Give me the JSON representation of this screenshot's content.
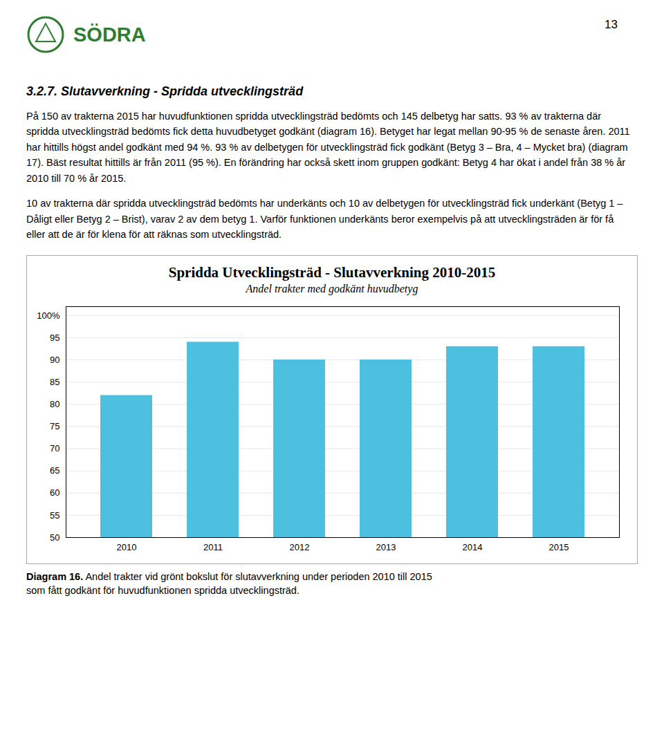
{
  "page_number": "13",
  "logo": {
    "text": "SÖDRA",
    "color": "#2e7d32"
  },
  "heading": "3.2.7.  Slutavverkning - Spridda utvecklingsträd",
  "paragraphs": [
    "På 150 av trakterna 2015 har huvudfunktionen spridda utvecklingsträd bedömts och 145 delbetyg har satts. 93 % av trakterna där spridda utvecklingsträd bedömts fick detta huvudbetyget godkänt (diagram 16). Betyget har legat mellan 90-95 % de senaste åren. 2011 har hittills högst andel godkänt med 94 %. 93 % av delbetygen för utvecklingsträd fick godkänt (Betyg 3 – Bra, 4 – Mycket bra) (diagram 17). Bäst resultat hittills är från 2011 (95 %). En förändring har också skett inom gruppen godkänt: Betyg 4 har ökat i andel från 38 % år 2010 till 70 % år 2015.",
    "10 av trakterna där spridda utvecklingsträd bedömts har underkänts och 10 av delbetygen för utvecklingsträd fick underkänt (Betyg 1 – Dåligt eller Betyg 2 – Brist), varav 2 av dem betyg 1. Varför funktionen underkänts beror exempelvis på att utvecklingsträden är för få eller att de är för klena för att räknas som utvecklingsträd."
  ],
  "caption": {
    "bold": "Diagram 16.",
    "text": " Andel trakter vid grönt bokslut för slutavverkning under perioden 2010 till 2015\nsom fått godkänt för huvudfunktionen spridda utvecklingsträd."
  },
  "chart_data": {
    "type": "bar",
    "title": "Spridda Utvecklingsträd - Slutavverkning 2010-2015",
    "subtitle": "Andel trakter med godkänt huvudbetyg",
    "categories": [
      "2010",
      "2011",
      "2012",
      "2013",
      "2014",
      "2015"
    ],
    "values": [
      82,
      94,
      90,
      90,
      93,
      93
    ],
    "color": "#4DBFDF",
    "ylim": [
      50,
      102
    ],
    "yticks": [
      50,
      55,
      60,
      65,
      70,
      75,
      80,
      85,
      90,
      95,
      {
        "value": 100,
        "label": "100%"
      }
    ],
    "grid": true
  }
}
